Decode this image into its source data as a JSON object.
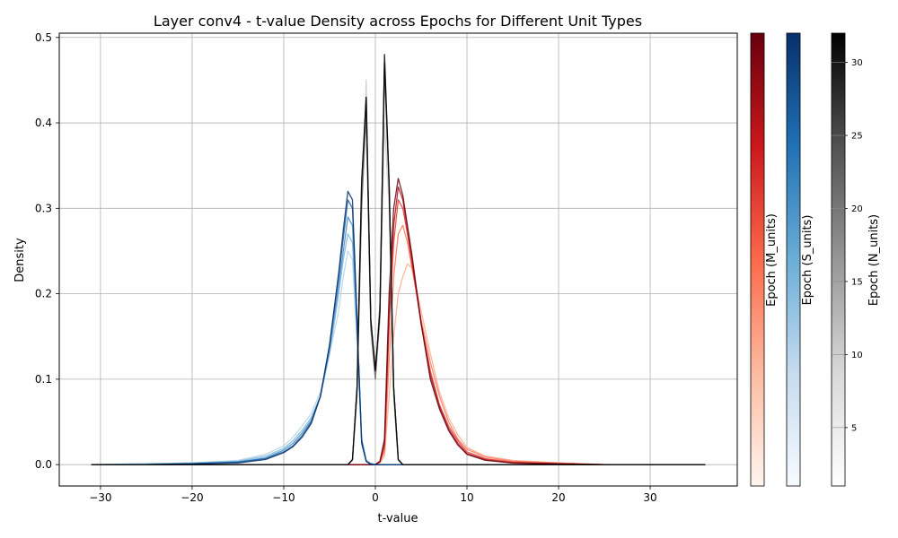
{
  "chart_data": {
    "type": "line",
    "title": "Layer conv4 - t-value Density across Epochs for Different Unit Types",
    "xlabel": "t-value",
    "ylabel": "Density",
    "xlim": [
      -34.5,
      39.5
    ],
    "ylim": [
      -0.025,
      0.505
    ],
    "xticks": [
      -30,
      -20,
      -10,
      0,
      10,
      20,
      30
    ],
    "yticks": [
      0.0,
      0.1,
      0.2,
      0.3,
      0.4,
      0.5
    ],
    "grid": true,
    "legend": "none",
    "series": [
      {
        "group": "M_units",
        "colormap": "Reds",
        "epochs": [
          1,
          8,
          16,
          24,
          32
        ],
        "x": [
          -31,
          -10,
          -4,
          -2,
          -1,
          0,
          0.5,
          1,
          1.5,
          2,
          2.5,
          3,
          3.5,
          4,
          5,
          6,
          7,
          8,
          9,
          10,
          12,
          15,
          20,
          25,
          30,
          36
        ],
        "curves": [
          {
            "epoch": 1,
            "y": [
              0,
              0,
              0,
              0,
              0,
              0,
              0.002,
              0.01,
              0.08,
              0.15,
              0.2,
              0.22,
              0.235,
              0.23,
              0.18,
              0.13,
              0.085,
              0.055,
              0.035,
              0.02,
              0.01,
              0.005,
              0.002,
              0,
              0,
              0
            ]
          },
          {
            "epoch": 8,
            "y": [
              0,
              0,
              0,
              0,
              0,
              0,
              0.003,
              0.015,
              0.12,
              0.22,
              0.27,
              0.28,
              0.26,
              0.23,
              0.17,
              0.12,
              0.08,
              0.05,
              0.03,
              0.018,
              0.009,
              0.004,
              0.002,
              0,
              0,
              0
            ]
          },
          {
            "epoch": 16,
            "y": [
              0,
              0,
              0,
              0,
              0,
              0,
              0.003,
              0.02,
              0.16,
              0.26,
              0.31,
              0.3,
              0.27,
              0.235,
              0.165,
              0.11,
              0.07,
              0.045,
              0.028,
              0.015,
              0.007,
              0.003,
              0.001,
              0,
              0,
              0
            ]
          },
          {
            "epoch": 24,
            "y": [
              0,
              0,
              0,
              0,
              0,
              0,
              0.004,
              0.025,
              0.18,
              0.28,
              0.325,
              0.31,
              0.275,
              0.24,
              0.165,
              0.105,
              0.068,
              0.042,
              0.025,
              0.013,
              0.006,
              0.002,
              0.001,
              0,
              0,
              0
            ]
          },
          {
            "epoch": 32,
            "y": [
              0,
              0,
              0,
              0,
              0,
              0,
              0.004,
              0.03,
              0.2,
              0.3,
              0.335,
              0.315,
              0.28,
              0.245,
              0.165,
              0.1,
              0.065,
              0.04,
              0.023,
              0.012,
              0.005,
              0.002,
              0.001,
              0,
              0,
              0
            ]
          }
        ]
      },
      {
        "group": "S_units",
        "colormap": "Blues",
        "epochs": [
          1,
          8,
          16,
          24,
          32
        ],
        "x": [
          -31,
          -25,
          -20,
          -15,
          -12,
          -10,
          -9,
          -8,
          -7,
          -6,
          -5,
          -4,
          -3.5,
          -3,
          -2.5,
          -2,
          -1.5,
          -1,
          -0.5,
          0,
          1,
          3
        ],
        "curves": [
          {
            "epoch": 1,
            "y": [
              0,
              0.001,
              0.002,
              0.005,
              0.012,
              0.022,
              0.032,
              0.045,
              0.06,
              0.085,
              0.13,
              0.18,
              0.22,
              0.25,
              0.24,
              0.14,
              0.03,
              0.005,
              0.001,
              0,
              0,
              0
            ]
          },
          {
            "epoch": 8,
            "y": [
              0,
              0.001,
              0.002,
              0.004,
              0.01,
              0.019,
              0.028,
              0.04,
              0.055,
              0.08,
              0.13,
              0.2,
              0.24,
              0.27,
              0.26,
              0.15,
              0.03,
              0.005,
              0.001,
              0,
              0,
              0
            ]
          },
          {
            "epoch": 16,
            "y": [
              0,
              0,
              0.001,
              0.003,
              0.008,
              0.017,
              0.025,
              0.037,
              0.052,
              0.08,
              0.135,
              0.21,
              0.25,
              0.29,
              0.28,
              0.16,
              0.03,
              0.004,
              0.001,
              0,
              0,
              0
            ]
          },
          {
            "epoch": 24,
            "y": [
              0,
              0,
              0.001,
              0.003,
              0.007,
              0.015,
              0.022,
              0.034,
              0.05,
              0.08,
              0.14,
              0.22,
              0.265,
              0.31,
              0.3,
              0.17,
              0.028,
              0.004,
              0.001,
              0,
              0,
              0
            ]
          },
          {
            "epoch": 32,
            "y": [
              0,
              0,
              0.001,
              0.002,
              0.006,
              0.014,
              0.021,
              0.032,
              0.048,
              0.08,
              0.14,
              0.225,
              0.275,
              0.32,
              0.31,
              0.17,
              0.025,
              0.004,
              0,
              0,
              0,
              0
            ]
          }
        ]
      },
      {
        "group": "N_units",
        "colormap": "Greys",
        "epochs": [
          1,
          8,
          16,
          24,
          32
        ],
        "x": [
          -31,
          -3,
          -2.5,
          -2,
          -1.5,
          -1,
          -0.5,
          0,
          0.5,
          1,
          1.5,
          2,
          2.5,
          3,
          36
        ],
        "curves": [
          {
            "epoch": 1,
            "y": [
              0,
              0,
              0.005,
              0.08,
              0.3,
              0.45,
              0.16,
              0.1,
              0.18,
              0.4,
              0.3,
              0.08,
              0.005,
              0,
              0
            ]
          },
          {
            "epoch": 8,
            "y": [
              0,
              0,
              0.005,
              0.08,
              0.32,
              0.42,
              0.17,
              0.1,
              0.17,
              0.46,
              0.32,
              0.08,
              0.005,
              0,
              0
            ]
          },
          {
            "epoch": 16,
            "y": [
              0,
              0,
              0.006,
              0.09,
              0.3,
              0.41,
              0.16,
              0.1,
              0.19,
              0.47,
              0.33,
              0.09,
              0.006,
              0,
              0
            ]
          },
          {
            "epoch": 24,
            "y": [
              0,
              0,
              0.006,
              0.09,
              0.33,
              0.43,
              0.17,
              0.11,
              0.18,
              0.47,
              0.33,
              0.09,
              0.006,
              0,
              0
            ]
          },
          {
            "epoch": 32,
            "y": [
              0,
              0,
              0.006,
              0.09,
              0.33,
              0.43,
              0.17,
              0.11,
              0.18,
              0.48,
              0.33,
              0.09,
              0.006,
              0,
              0
            ]
          }
        ]
      }
    ],
    "colorbars": [
      {
        "label": "Epoch (M_units)",
        "colormap": "Reds",
        "range": [
          1,
          32
        ],
        "ticks": [],
        "colors": [
          "#fff5f0",
          "#fcbba1",
          "#fb6a4a",
          "#cb181d",
          "#67000d"
        ]
      },
      {
        "label": "Epoch (S_units)",
        "colormap": "Blues",
        "range": [
          1,
          32
        ],
        "ticks": [],
        "colors": [
          "#f7fbff",
          "#c6dbef",
          "#6baed6",
          "#2171b5",
          "#08306b"
        ]
      },
      {
        "label": "Epoch (N_units)",
        "colormap": "Greys",
        "range": [
          1,
          32
        ],
        "ticks": [
          5,
          10,
          15,
          20,
          25,
          30
        ],
        "colors": [
          "#ffffff",
          "#d9d9d9",
          "#969696",
          "#525252",
          "#000000"
        ]
      }
    ]
  }
}
